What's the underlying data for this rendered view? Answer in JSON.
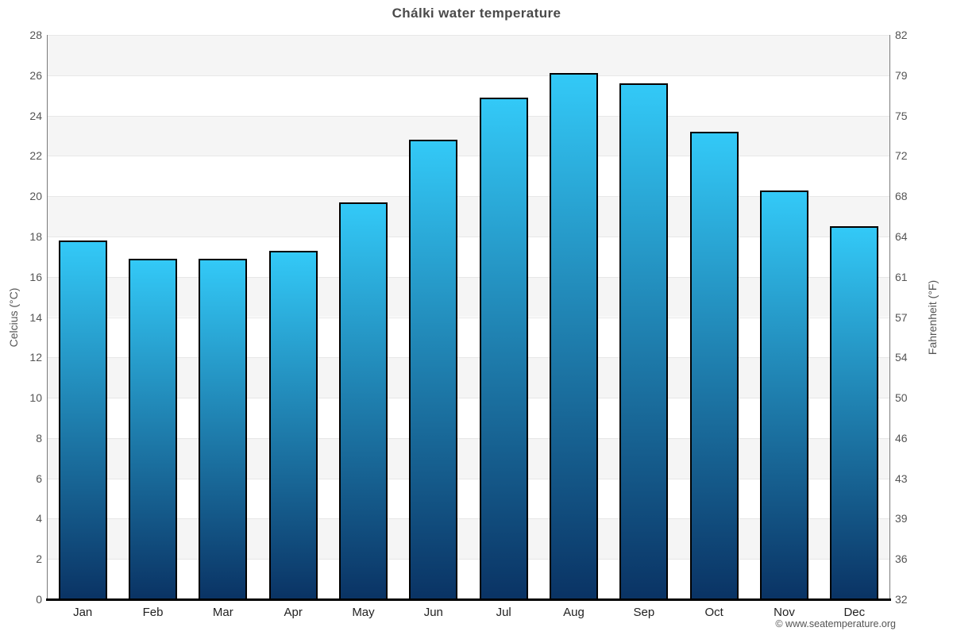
{
  "footer": "© www.seatemperature.org",
  "chart_data": {
    "type": "bar",
    "title": "Chálki water temperature",
    "categories": [
      "Jan",
      "Feb",
      "Mar",
      "Apr",
      "May",
      "Jun",
      "Jul",
      "Aug",
      "Sep",
      "Oct",
      "Nov",
      "Dec"
    ],
    "values": [
      17.8,
      16.9,
      16.9,
      17.3,
      19.7,
      22.8,
      24.9,
      26.1,
      25.6,
      23.2,
      20.3,
      18.5
    ],
    "xlabel": "",
    "ylabel_left": "Celcius (°C)",
    "ylabel_right": "Fahrenheit (°F)",
    "ylim": [
      0,
      28
    ],
    "yticks_left": [
      0,
      2,
      4,
      6,
      8,
      10,
      12,
      14,
      16,
      18,
      20,
      22,
      24,
      26,
      28
    ],
    "yticks_right": [
      32,
      36,
      39,
      43,
      46,
      50,
      54,
      57,
      61,
      64,
      68,
      72,
      75,
      79,
      82
    ],
    "legend": "none",
    "grid": "alternating horizontal bands",
    "colors": {
      "bar_gradient_top": "#33C9F7",
      "bar_gradient_bottom": "#0A3364",
      "bar_border": "#000000",
      "band_fill": "#F5F5F5",
      "gridline": "#E7E7E7",
      "title_text": "#4A4A4A",
      "tick_text": "#555555",
      "month_text": "#222222"
    }
  }
}
